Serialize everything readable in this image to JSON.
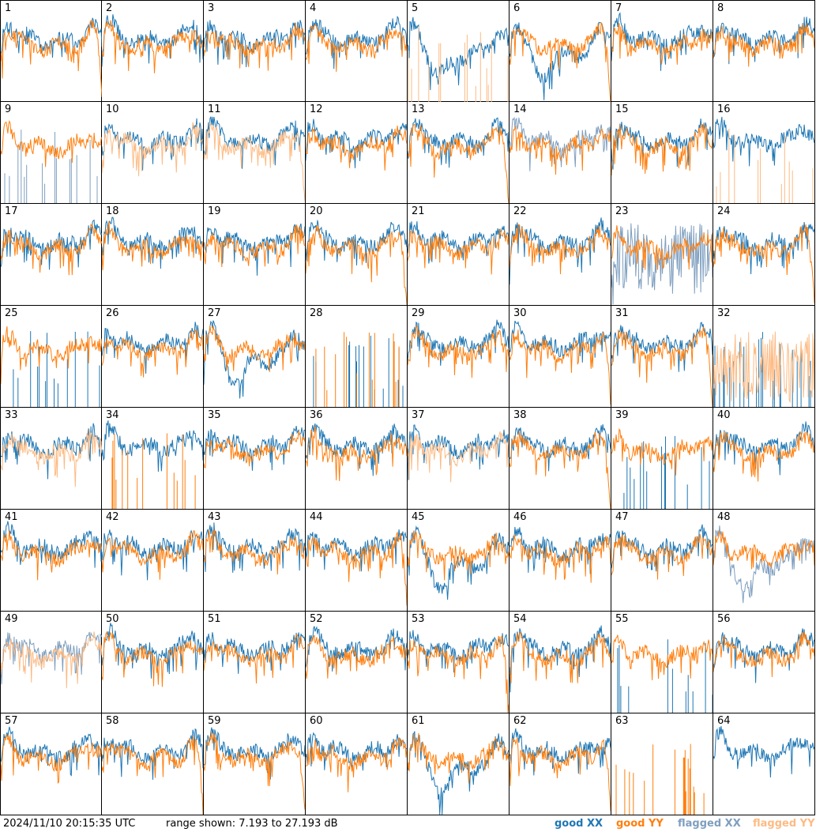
{
  "footer": {
    "timestamp": "2024/11/10 20:15:35 UTC",
    "range_text": "range shown: 7.193 to 27.193 dB",
    "legend": {
      "good_xx": "good XX",
      "good_yy": "good YY",
      "flagged_xx": "flagged XX",
      "flagged_yy": "flagged YY"
    }
  },
  "colors": {
    "good_xx": "#1f77b4",
    "good_yy": "#ff7f0e",
    "flagged_xx": "#7f9fbf",
    "flagged_yy": "#fdbb84"
  },
  "chart_data": {
    "type": "line",
    "layout": "8x8 small multiples",
    "ylim_db": [
      7.193,
      27.193
    ],
    "series_names": [
      "good XX",
      "good YY",
      "flagged XX",
      "flagged YY"
    ],
    "panels": [
      {
        "id": "1",
        "xx": "good",
        "yy": "good",
        "xx_shape": "normal",
        "yy_shape": "rolloff"
      },
      {
        "id": "2",
        "xx": "good",
        "yy": "good",
        "xx_shape": "normal",
        "yy_shape": "normal"
      },
      {
        "id": "3",
        "xx": "good",
        "yy": "good",
        "xx_shape": "normal",
        "yy_shape": "normal"
      },
      {
        "id": "4",
        "xx": "good",
        "yy": "good",
        "xx_shape": "normal",
        "yy_shape": "normal"
      },
      {
        "id": "5",
        "xx": "good",
        "yy": "flagged",
        "xx_shape": "dip",
        "yy_shape": "spikes"
      },
      {
        "id": "6",
        "xx": "good",
        "yy": "good",
        "xx_shape": "dip",
        "yy_shape": "rolloff"
      },
      {
        "id": "7",
        "xx": "good",
        "yy": "good",
        "xx_shape": "normal",
        "yy_shape": "normal"
      },
      {
        "id": "8",
        "xx": "good",
        "yy": "good",
        "xx_shape": "normal",
        "yy_shape": "normal"
      },
      {
        "id": "9",
        "xx": "flagged",
        "yy": "good",
        "xx_shape": "spikes",
        "yy_shape": "normal"
      },
      {
        "id": "10",
        "xx": "good",
        "yy": "flagged",
        "xx_shape": "normal",
        "yy_shape": "normal"
      },
      {
        "id": "11",
        "xx": "good",
        "yy": "flagged",
        "xx_shape": "normal",
        "yy_shape": "rolloff"
      },
      {
        "id": "12",
        "xx": "good",
        "yy": "good",
        "xx_shape": "normal",
        "yy_shape": "normal"
      },
      {
        "id": "13",
        "xx": "good",
        "yy": "good",
        "xx_shape": "normal",
        "yy_shape": "rolloff"
      },
      {
        "id": "14",
        "xx": "flagged",
        "yy": "good",
        "xx_shape": "normal",
        "yy_shape": "normal"
      },
      {
        "id": "15",
        "xx": "good",
        "yy": "good",
        "xx_shape": "normal",
        "yy_shape": "normal"
      },
      {
        "id": "16",
        "xx": "good",
        "yy": "flagged",
        "xx_shape": "normal",
        "yy_shape": "spikes"
      },
      {
        "id": "17",
        "xx": "good",
        "yy": "good",
        "xx_shape": "normal",
        "yy_shape": "normal"
      },
      {
        "id": "18",
        "xx": "good",
        "yy": "good",
        "xx_shape": "normal",
        "yy_shape": "normal"
      },
      {
        "id": "19",
        "xx": "good",
        "yy": "good",
        "xx_shape": "normal",
        "yy_shape": "normal"
      },
      {
        "id": "20",
        "xx": "good",
        "yy": "good",
        "xx_shape": "normal",
        "yy_shape": "rolloff"
      },
      {
        "id": "21",
        "xx": "good",
        "yy": "good",
        "xx_shape": "normal",
        "yy_shape": "normal"
      },
      {
        "id": "22",
        "xx": "good",
        "yy": "good",
        "xx_shape": "normal",
        "yy_shape": "normal"
      },
      {
        "id": "23",
        "xx": "flagged",
        "yy": "good",
        "xx_shape": "noisy",
        "yy_shape": "normal"
      },
      {
        "id": "24",
        "xx": "good",
        "yy": "good",
        "xx_shape": "normal",
        "yy_shape": "rolloff"
      },
      {
        "id": "25",
        "xx": "good",
        "yy": "good",
        "xx_shape": "spikes",
        "yy_shape": "normal"
      },
      {
        "id": "26",
        "xx": "good",
        "yy": "good",
        "xx_shape": "normal",
        "yy_shape": "normal"
      },
      {
        "id": "27",
        "xx": "good",
        "yy": "good",
        "xx_shape": "dip",
        "yy_shape": "normal"
      },
      {
        "id": "28",
        "xx": "good",
        "yy": "good",
        "xx_shape": "spikes",
        "yy_shape": "spikes"
      },
      {
        "id": "29",
        "xx": "good",
        "yy": "good",
        "xx_shape": "normal",
        "yy_shape": "normal"
      },
      {
        "id": "30",
        "xx": "good",
        "yy": "good",
        "xx_shape": "normal",
        "yy_shape": "rolloff"
      },
      {
        "id": "31",
        "xx": "good",
        "yy": "good",
        "xx_shape": "normal",
        "yy_shape": "rolloff"
      },
      {
        "id": "32",
        "xx": "good",
        "yy": "flagged",
        "xx_shape": "spikes",
        "yy_shape": "noisy"
      },
      {
        "id": "33",
        "xx": "good",
        "yy": "flagged",
        "xx_shape": "normal",
        "yy_shape": "normal"
      },
      {
        "id": "34",
        "xx": "good",
        "yy": "good",
        "xx_shape": "normal",
        "yy_shape": "spikes"
      },
      {
        "id": "35",
        "xx": "good",
        "yy": "good",
        "xx_shape": "normal",
        "yy_shape": "normal"
      },
      {
        "id": "36",
        "xx": "good",
        "yy": "good",
        "xx_shape": "normal",
        "yy_shape": "normal"
      },
      {
        "id": "37",
        "xx": "good",
        "yy": "flagged",
        "xx_shape": "normal",
        "yy_shape": "normal"
      },
      {
        "id": "38",
        "xx": "good",
        "yy": "good",
        "xx_shape": "normal",
        "yy_shape": "rolloff"
      },
      {
        "id": "39",
        "xx": "good",
        "yy": "good",
        "xx_shape": "spikes",
        "yy_shape": "normal"
      },
      {
        "id": "40",
        "xx": "good",
        "yy": "good",
        "xx_shape": "normal",
        "yy_shape": "normal"
      },
      {
        "id": "41",
        "xx": "good",
        "yy": "good",
        "xx_shape": "normal",
        "yy_shape": "normal"
      },
      {
        "id": "42",
        "xx": "good",
        "yy": "good",
        "xx_shape": "normal",
        "yy_shape": "normal"
      },
      {
        "id": "43",
        "xx": "good",
        "yy": "good",
        "xx_shape": "normal",
        "yy_shape": "normal"
      },
      {
        "id": "44",
        "xx": "good",
        "yy": "good",
        "xx_shape": "normal",
        "yy_shape": "rolloff"
      },
      {
        "id": "45",
        "xx": "good",
        "yy": "good",
        "xx_shape": "dip",
        "yy_shape": "normal"
      },
      {
        "id": "46",
        "xx": "good",
        "yy": "good",
        "xx_shape": "normal",
        "yy_shape": "normal"
      },
      {
        "id": "47",
        "xx": "good",
        "yy": "good",
        "xx_shape": "normal",
        "yy_shape": "normal"
      },
      {
        "id": "48",
        "xx": "flagged",
        "yy": "good",
        "xx_shape": "dip",
        "yy_shape": "normal"
      },
      {
        "id": "49",
        "xx": "flagged",
        "yy": "flagged",
        "xx_shape": "normal",
        "yy_shape": "normal"
      },
      {
        "id": "50",
        "xx": "good",
        "yy": "good",
        "xx_shape": "normal",
        "yy_shape": "normal"
      },
      {
        "id": "51",
        "xx": "good",
        "yy": "good",
        "xx_shape": "normal",
        "yy_shape": "normal"
      },
      {
        "id": "52",
        "xx": "good",
        "yy": "good",
        "xx_shape": "normal",
        "yy_shape": "normal"
      },
      {
        "id": "53",
        "xx": "good",
        "yy": "good",
        "xx_shape": "normal",
        "yy_shape": "rolloff"
      },
      {
        "id": "54",
        "xx": "good",
        "yy": "good",
        "xx_shape": "normal",
        "yy_shape": "normal"
      },
      {
        "id": "55",
        "xx": "good",
        "yy": "good",
        "xx_shape": "spikes",
        "yy_shape": "normal"
      },
      {
        "id": "56",
        "xx": "good",
        "yy": "good",
        "xx_shape": "normal",
        "yy_shape": "normal"
      },
      {
        "id": "57",
        "xx": "good",
        "yy": "good",
        "xx_shape": "normal",
        "yy_shape": "normal"
      },
      {
        "id": "58",
        "xx": "good",
        "yy": "good",
        "xx_shape": "normal",
        "yy_shape": "rolloff"
      },
      {
        "id": "59",
        "xx": "good",
        "yy": "good",
        "xx_shape": "normal",
        "yy_shape": "rolloff"
      },
      {
        "id": "60",
        "xx": "good",
        "yy": "good",
        "xx_shape": "normal",
        "yy_shape": "normal"
      },
      {
        "id": "61",
        "xx": "good",
        "yy": "good",
        "xx_shape": "dip",
        "yy_shape": "normal"
      },
      {
        "id": "62",
        "xx": "good",
        "yy": "good",
        "xx_shape": "normal",
        "yy_shape": "rolloff"
      },
      {
        "id": "63",
        "xx": "good",
        "yy": "good",
        "xx_shape": "none",
        "yy_shape": "spikes"
      },
      {
        "id": "64",
        "xx": "good",
        "yy": "good",
        "xx_shape": "normal",
        "yy_shape": "none"
      }
    ]
  }
}
